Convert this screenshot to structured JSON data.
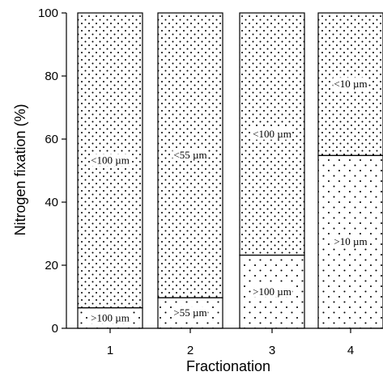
{
  "chart_data": {
    "type": "bar",
    "stacked": true,
    "xlabel": "Fractionation",
    "ylabel": "Nitrogen fixation (%)",
    "ylim": [
      0,
      100
    ],
    "yticks": [
      "0",
      "20",
      "40",
      "60",
      "80",
      "100"
    ],
    "categories": [
      "1",
      "2",
      "3",
      "4"
    ],
    "bars": [
      {
        "category": "1",
        "segments": [
          {
            "label": ">100 µm",
            "value": 6.5
          },
          {
            "label": "<100 µm",
            "value": 93.5
          }
        ]
      },
      {
        "category": "2",
        "segments": [
          {
            "label": ">55 µm",
            "value": 9.7
          },
          {
            "label": "<55 µm",
            "value": 90.3
          }
        ]
      },
      {
        "category": "3",
        "segments": [
          {
            "label": ">100 µm",
            "value": 23.2
          },
          {
            "label": "<100 µm",
            "value": 76.8
          }
        ]
      },
      {
        "category": "4",
        "segments": [
          {
            "label": ">10 µm",
            "value": 54.8
          },
          {
            "label": "<10 µm",
            "value": 45.2
          }
        ]
      }
    ],
    "grid": false,
    "legend": "none",
    "fill": "dotted pattern",
    "colors": {
      "outline": "#000000",
      "dots": "#000000",
      "background": "#ffffff"
    }
  }
}
